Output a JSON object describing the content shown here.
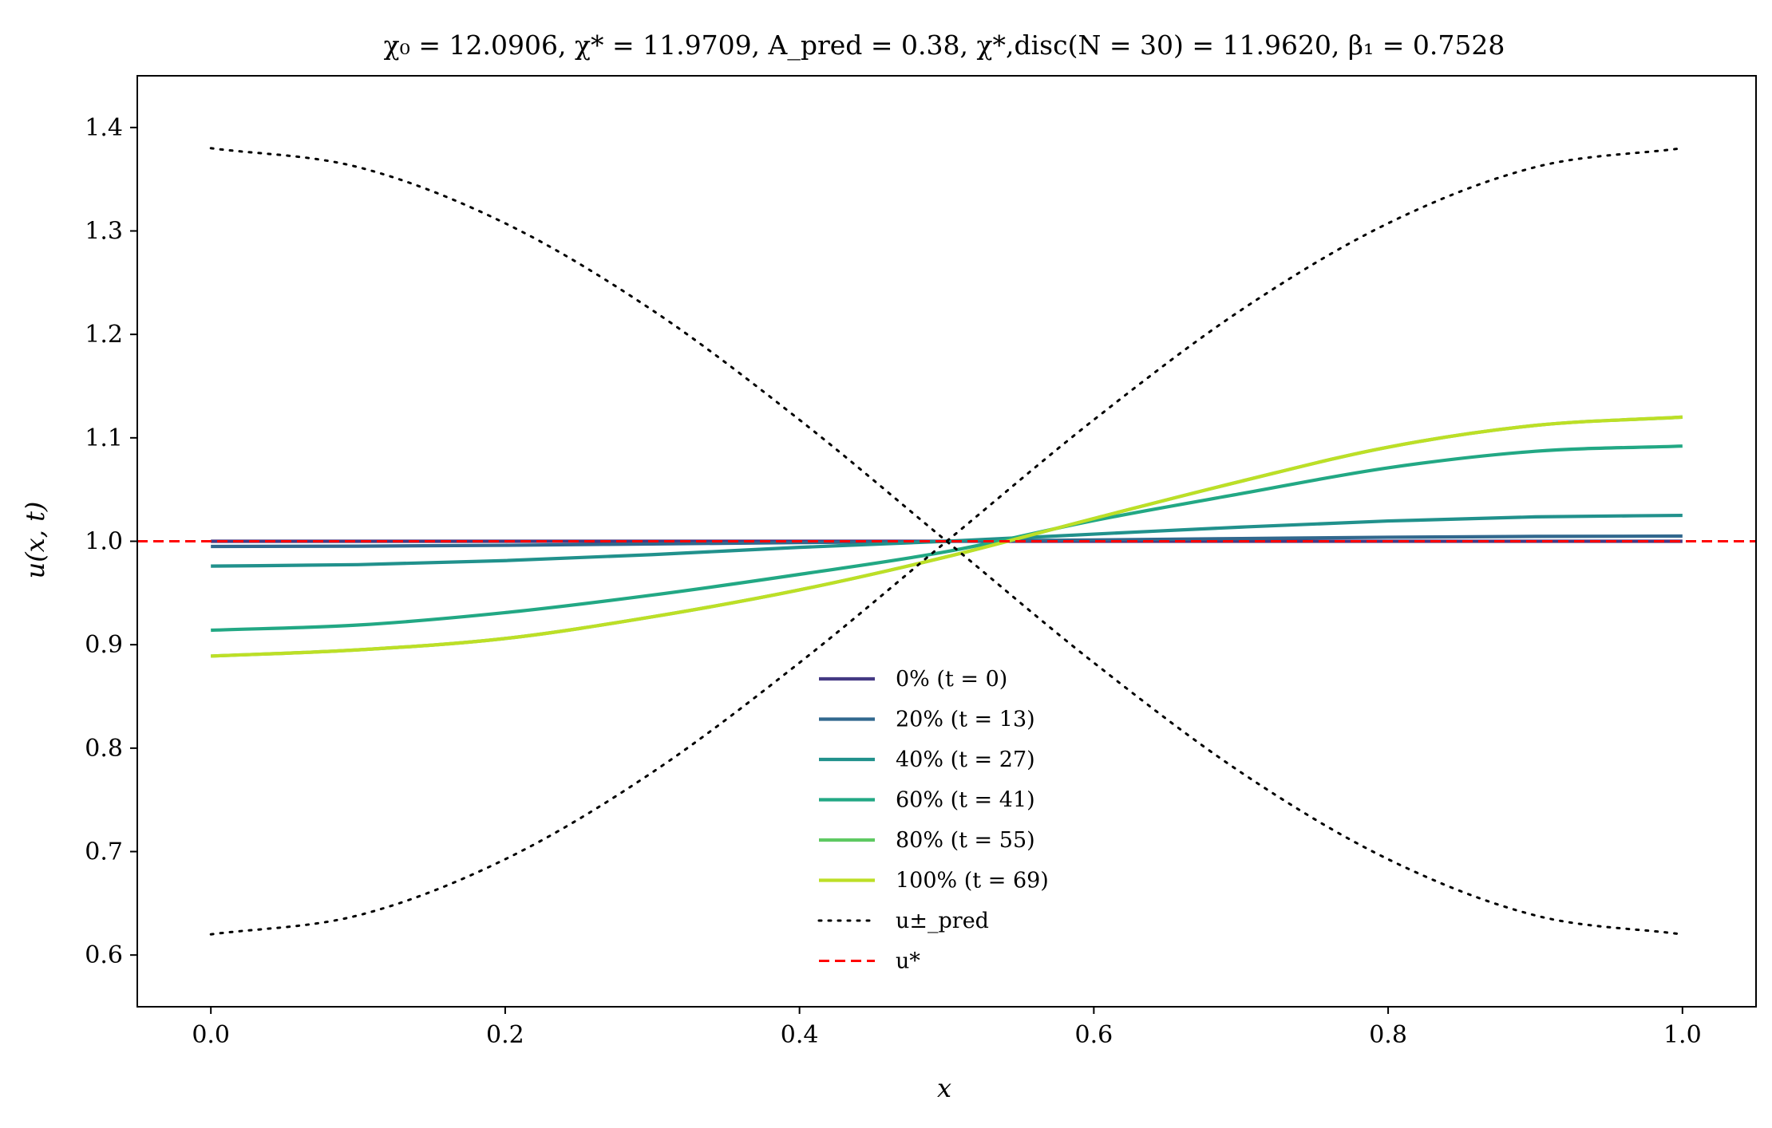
{
  "chart_data": {
    "type": "line",
    "title": "χ₀ = 12.0906,  χ* = 11.9709,  A_pred = 0.38,  χ*,disc(N = 30) = 11.9620,  β₁ = 0.7528",
    "xlabel": "x",
    "ylabel": "u(x, t)",
    "xlim": [
      -0.05,
      1.05
    ],
    "ylim": [
      0.55,
      1.45
    ],
    "xticks": [
      "0.0",
      "0.2",
      "0.4",
      "0.6",
      "0.8",
      "1.0"
    ],
    "yticks": [
      "0.6",
      "0.7",
      "0.8",
      "0.9",
      "1.0",
      "1.1",
      "1.2",
      "1.3",
      "1.4"
    ],
    "grid": false,
    "legend_position": "lower-center",
    "series": [
      {
        "name": "0% (t = 0)",
        "color": "#443983",
        "style": "solid",
        "x": [
          0,
          1
        ],
        "y": [
          1.0,
          1.0
        ]
      },
      {
        "name": "20% (t = 13)",
        "color": "#31688e",
        "style": "solid",
        "x": [
          0,
          0.1,
          0.2,
          0.3,
          0.4,
          0.5,
          0.6,
          0.7,
          0.8,
          0.9,
          1.0
        ],
        "y": [
          0.995,
          0.9953,
          0.9961,
          0.9974,
          0.9987,
          1.0,
          1.0013,
          1.0026,
          1.0039,
          1.0047,
          1.005
        ]
      },
      {
        "name": "40% (t = 27)",
        "color": "#21918c",
        "style": "solid",
        "x": [
          0,
          0.1,
          0.2,
          0.3,
          0.4,
          0.5,
          0.6,
          0.7,
          0.8,
          0.9,
          1.0
        ],
        "y": [
          0.976,
          0.9774,
          0.9813,
          0.9871,
          0.9941,
          1.0,
          1.0069,
          1.0137,
          1.0196,
          1.0236,
          1.025
        ]
      },
      {
        "name": "60% (t = 41)",
        "color": "#22a884",
        "style": "solid",
        "x": [
          0,
          0.1,
          0.2,
          0.3,
          0.4,
          0.5,
          0.6,
          0.7,
          0.8,
          0.9,
          1.0
        ],
        "y": [
          0.914,
          0.919,
          0.931,
          0.948,
          0.968,
          0.99,
          1.02,
          1.046,
          1.071,
          1.087,
          1.092
        ]
      },
      {
        "name": "80% (t = 55)",
        "color": "#5ec962",
        "style": "solid",
        "x": [
          0,
          0.1,
          0.2,
          0.3,
          0.4,
          0.5,
          0.6,
          0.7,
          0.8,
          0.9,
          1.0
        ],
        "y": [
          0.889,
          0.895,
          0.906,
          0.927,
          0.953,
          0.985,
          1.022,
          1.058,
          1.091,
          1.112,
          1.12
        ]
      },
      {
        "name": "100% (t = 69)",
        "color": "#bddf26",
        "style": "solid",
        "x": [
          0,
          0.1,
          0.2,
          0.3,
          0.4,
          0.5,
          0.6,
          0.7,
          0.8,
          0.9,
          1.0
        ],
        "y": [
          0.889,
          0.895,
          0.906,
          0.927,
          0.953,
          0.985,
          1.022,
          1.058,
          1.091,
          1.112,
          1.12
        ]
      },
      {
        "name": "u±_pred",
        "color": "#000000",
        "style": "dotted",
        "x": [
          0,
          0.1,
          0.2,
          0.3,
          0.4,
          0.5,
          0.6,
          0.7,
          0.8,
          0.9,
          1.0
        ],
        "y": [
          1.38,
          1.3617,
          1.3074,
          1.2234,
          1.1174,
          1.0,
          0.8826,
          0.7766,
          0.6926,
          0.6383,
          0.62
        ]
      },
      {
        "name": "",
        "color": "#000000",
        "style": "dotted",
        "x": [
          0,
          0.1,
          0.2,
          0.3,
          0.4,
          0.5,
          0.6,
          0.7,
          0.8,
          0.9,
          1.0
        ],
        "y": [
          0.62,
          0.6383,
          0.6926,
          0.7766,
          0.8826,
          1.0,
          1.1174,
          1.2234,
          1.3074,
          1.3617,
          1.38
        ]
      },
      {
        "name": "u*",
        "color": "#ff0000",
        "style": "dashed",
        "x": [
          -0.05,
          1.05
        ],
        "y": [
          1.0,
          1.0
        ]
      }
    ]
  }
}
